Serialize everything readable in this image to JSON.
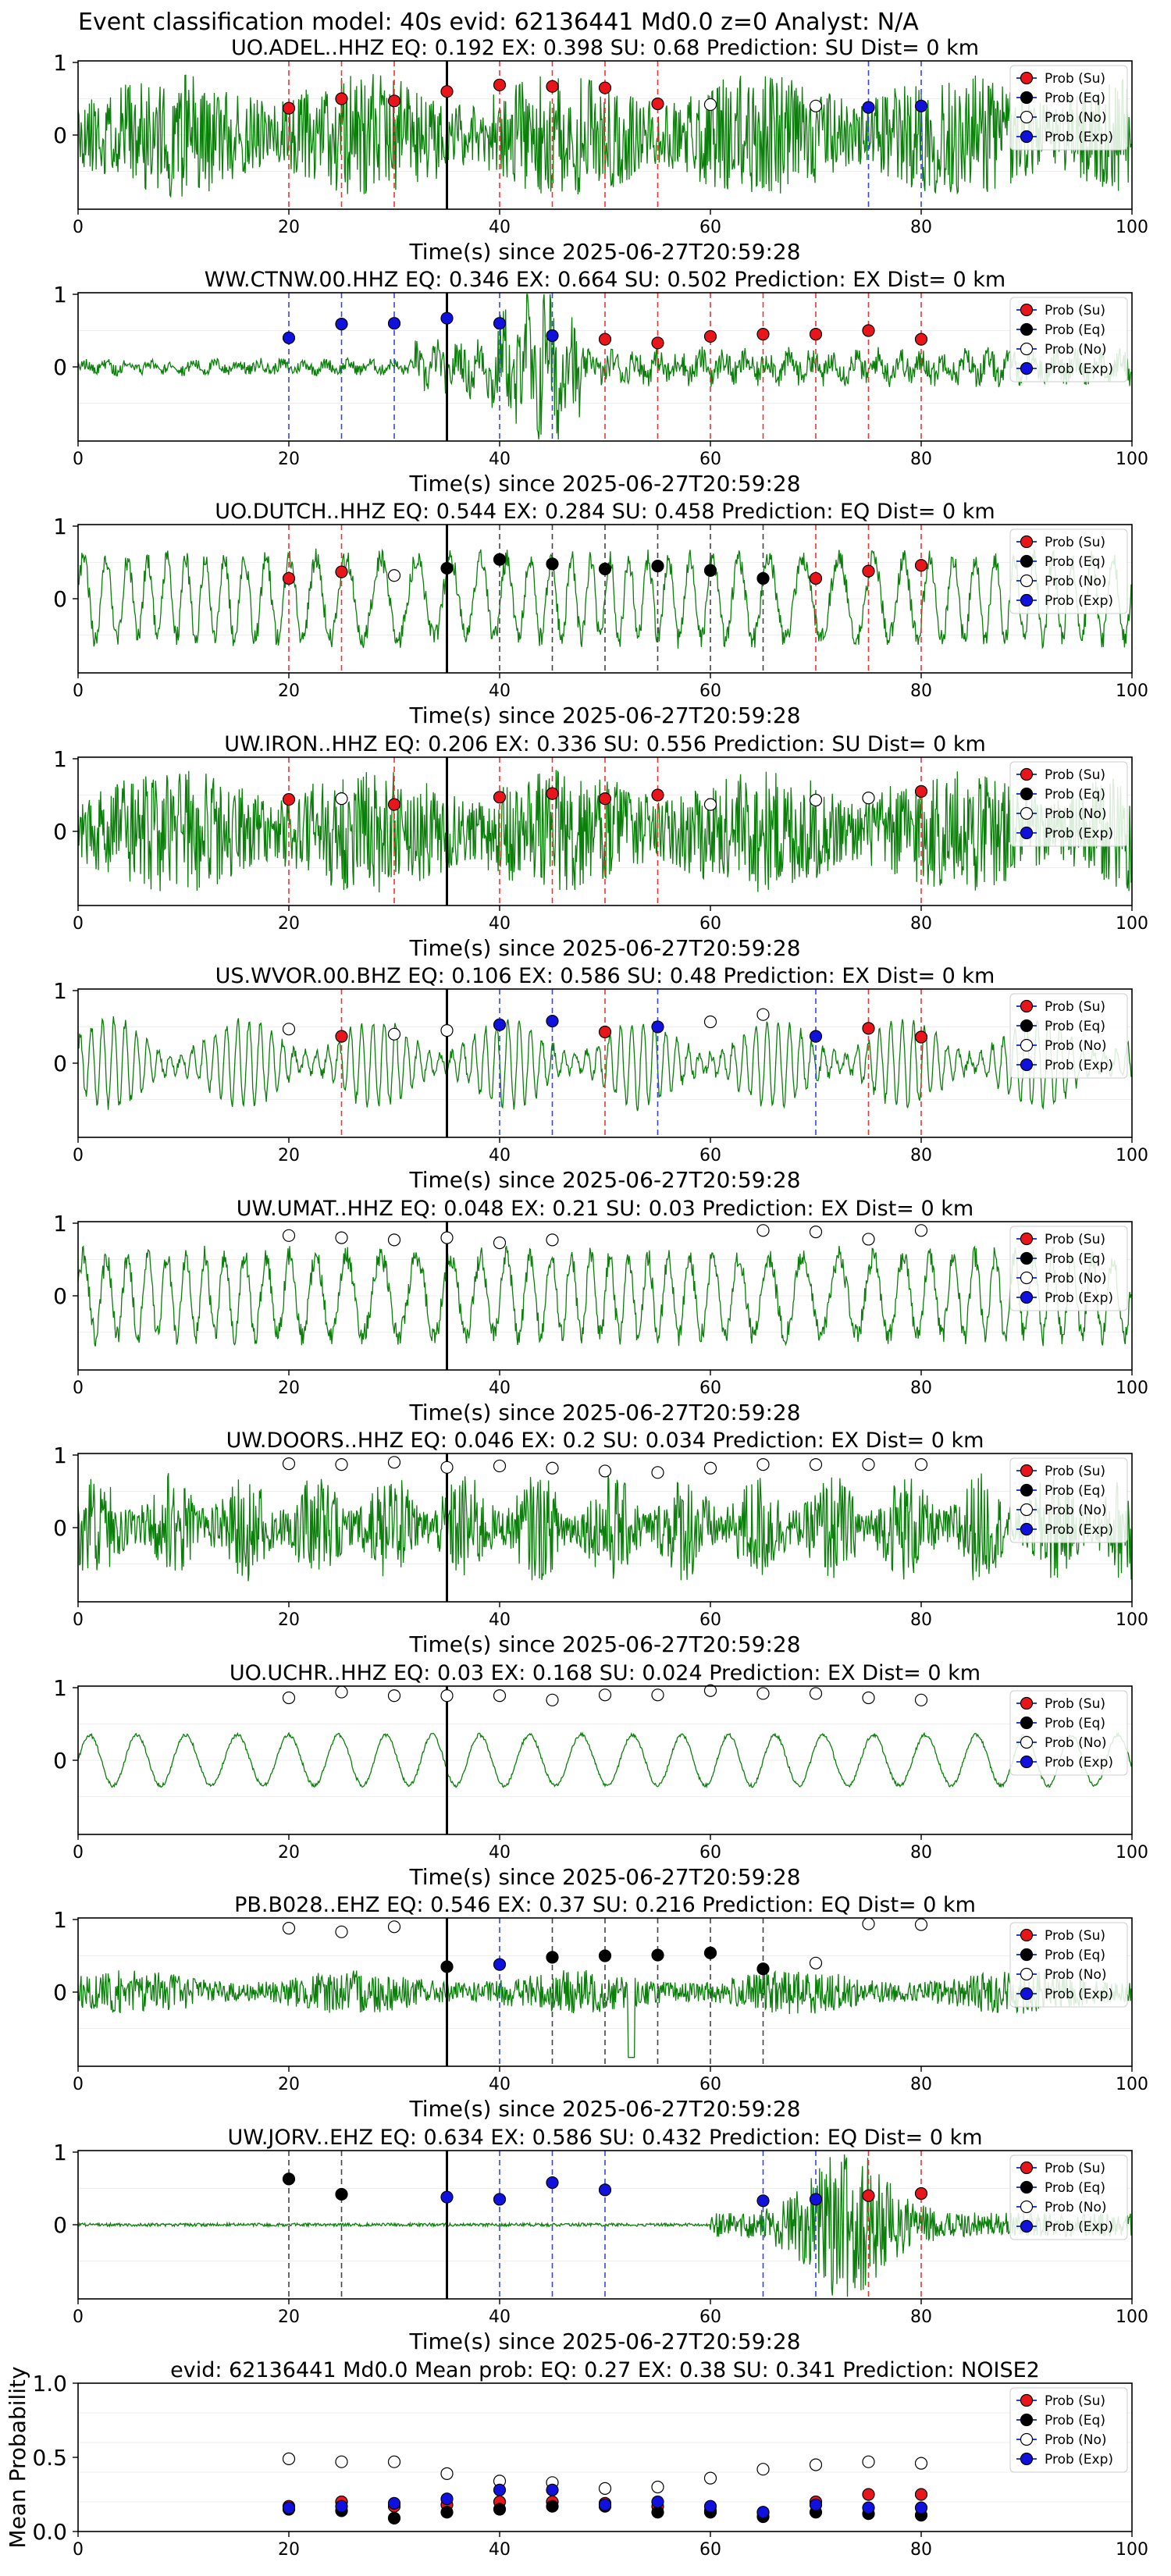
{
  "figure_title": "Event classification model: 40s evid: 62136441 Md0.0 z=0 Analyst: N/A",
  "xlabel": "Time(s) since 2025-06-27T20:59:28",
  "legend": [
    "Prob (Su)",
    "Prob (Eq)",
    "Prob (No)",
    "Prob (Exp)"
  ],
  "colors": {
    "su": "#e8161b",
    "eq": "#000000",
    "no": "#ffffff",
    "exp": "#1111dd",
    "wave": "#0a800a",
    "su_line": "#ee3333",
    "eq_line": "#444444",
    "exp_line": "#3344ee"
  },
  "chart_data": [
    {
      "type": "line",
      "title": "UO.ADEL..HHZ   EQ: 0.192  EX: 0.398  SU: 0.68   Prediction: SU    Dist= 0 km",
      "xlim": [
        0,
        100
      ],
      "ylim": [
        -1,
        1
      ],
      "yticks": [
        "1",
        "0"
      ],
      "xticks": [
        "0",
        "20",
        "40",
        "60",
        "80",
        "100"
      ],
      "pick": 35,
      "seed": 11,
      "style": "burst",
      "markers": [
        {
          "t": 20,
          "c": "su",
          "p": 0.37
        },
        {
          "t": 25,
          "c": "su",
          "p": 0.5
        },
        {
          "t": 30,
          "c": "su",
          "p": 0.47
        },
        {
          "t": 35,
          "c": "su",
          "p": 0.6
        },
        {
          "t": 40,
          "c": "su",
          "p": 0.69
        },
        {
          "t": 45,
          "c": "su",
          "p": 0.67
        },
        {
          "t": 50,
          "c": "su",
          "p": 0.65
        },
        {
          "t": 55,
          "c": "su",
          "p": 0.43
        },
        {
          "t": 60,
          "c": "no",
          "p": 0.42
        },
        {
          "t": 70,
          "c": "no",
          "p": 0.4
        },
        {
          "t": 75,
          "c": "exp",
          "p": 0.38
        },
        {
          "t": 80,
          "c": "exp",
          "p": 0.4
        }
      ]
    },
    {
      "type": "line",
      "title": "WW.CTNW.00.HHZ   EQ: 0.346  EX: 0.664  SU: 0.502   Prediction: EX    Dist= 0 km",
      "xlim": [
        0,
        100
      ],
      "ylim": [
        -1,
        1
      ],
      "yticks": [
        "1",
        "0"
      ],
      "xticks": [
        "0",
        "20",
        "40",
        "60",
        "80",
        "100"
      ],
      "pick": 35,
      "seed": 22,
      "style": "quiet-burst",
      "markers": [
        {
          "t": 20,
          "c": "exp",
          "p": 0.4
        },
        {
          "t": 25,
          "c": "exp",
          "p": 0.59
        },
        {
          "t": 30,
          "c": "exp",
          "p": 0.6
        },
        {
          "t": 35,
          "c": "exp",
          "p": 0.67
        },
        {
          "t": 40,
          "c": "exp",
          "p": 0.6
        },
        {
          "t": 45,
          "c": "exp",
          "p": 0.43
        },
        {
          "t": 50,
          "c": "su",
          "p": 0.38
        },
        {
          "t": 55,
          "c": "su",
          "p": 0.33
        },
        {
          "t": 60,
          "c": "su",
          "p": 0.42
        },
        {
          "t": 65,
          "c": "su",
          "p": 0.45
        },
        {
          "t": 70,
          "c": "su",
          "p": 0.45
        },
        {
          "t": 75,
          "c": "su",
          "p": 0.5
        },
        {
          "t": 80,
          "c": "su",
          "p": 0.38
        }
      ]
    },
    {
      "type": "line",
      "title": "UO.DUTCH..HHZ   EQ: 0.544  EX: 0.284  SU: 0.458   Prediction: EQ    Dist= 0 km",
      "xlim": [
        0,
        100
      ],
      "ylim": [
        -1,
        1
      ],
      "yticks": [
        "1",
        "0"
      ],
      "xticks": [
        "0",
        "20",
        "40",
        "60",
        "80",
        "100"
      ],
      "pick": 35,
      "seed": 33,
      "style": "wave",
      "markers": [
        {
          "t": 20,
          "c": "su",
          "p": 0.28
        },
        {
          "t": 25,
          "c": "su",
          "p": 0.37
        },
        {
          "t": 30,
          "c": "no",
          "p": 0.32
        },
        {
          "t": 35,
          "c": "eq",
          "p": 0.42
        },
        {
          "t": 40,
          "c": "eq",
          "p": 0.54
        },
        {
          "t": 45,
          "c": "eq",
          "p": 0.48
        },
        {
          "t": 50,
          "c": "eq",
          "p": 0.41
        },
        {
          "t": 55,
          "c": "eq",
          "p": 0.45
        },
        {
          "t": 60,
          "c": "eq",
          "p": 0.39
        },
        {
          "t": 65,
          "c": "eq",
          "p": 0.28
        },
        {
          "t": 70,
          "c": "su",
          "p": 0.28
        },
        {
          "t": 75,
          "c": "su",
          "p": 0.38
        },
        {
          "t": 80,
          "c": "su",
          "p": 0.46
        }
      ]
    },
    {
      "type": "line",
      "title": "UW.IRON..HHZ   EQ: 0.206  EX: 0.336  SU: 0.556   Prediction: SU    Dist= 0 km",
      "xlim": [
        0,
        100
      ],
      "ylim": [
        -1,
        1
      ],
      "yticks": [
        "1",
        "0"
      ],
      "xticks": [
        "0",
        "20",
        "40",
        "60",
        "80",
        "100"
      ],
      "pick": 35,
      "seed": 44,
      "style": "burst",
      "markers": [
        {
          "t": 20,
          "c": "su",
          "p": 0.44
        },
        {
          "t": 25,
          "c": "no",
          "p": 0.45
        },
        {
          "t": 30,
          "c": "su",
          "p": 0.37
        },
        {
          "t": 40,
          "c": "su",
          "p": 0.47
        },
        {
          "t": 45,
          "c": "su",
          "p": 0.52
        },
        {
          "t": 50,
          "c": "su",
          "p": 0.45
        },
        {
          "t": 55,
          "c": "su",
          "p": 0.5
        },
        {
          "t": 60,
          "c": "no",
          "p": 0.37
        },
        {
          "t": 70,
          "c": "no",
          "p": 0.43
        },
        {
          "t": 75,
          "c": "no",
          "p": 0.46
        },
        {
          "t": 80,
          "c": "su",
          "p": 0.55
        }
      ]
    },
    {
      "type": "line",
      "title": "US.WVOR.00.BHZ   EQ: 0.106  EX: 0.586  SU: 0.48   Prediction: EX    Dist= 0 km",
      "xlim": [
        0,
        100
      ],
      "ylim": [
        -1,
        1
      ],
      "yticks": [
        "1",
        "0"
      ],
      "xticks": [
        "0",
        "20",
        "40",
        "60",
        "80",
        "100"
      ],
      "pick": 35,
      "seed": 55,
      "style": "osc",
      "markers": [
        {
          "t": 20,
          "c": "no",
          "p": 0.47
        },
        {
          "t": 25,
          "c": "su",
          "p": 0.37
        },
        {
          "t": 30,
          "c": "no",
          "p": 0.4
        },
        {
          "t": 35,
          "c": "no",
          "p": 0.45
        },
        {
          "t": 40,
          "c": "exp",
          "p": 0.53
        },
        {
          "t": 45,
          "c": "exp",
          "p": 0.58
        },
        {
          "t": 50,
          "c": "su",
          "p": 0.43
        },
        {
          "t": 55,
          "c": "exp",
          "p": 0.5
        },
        {
          "t": 60,
          "c": "no",
          "p": 0.57
        },
        {
          "t": 65,
          "c": "no",
          "p": 0.67
        },
        {
          "t": 70,
          "c": "exp",
          "p": 0.37
        },
        {
          "t": 75,
          "c": "su",
          "p": 0.48
        },
        {
          "t": 80,
          "c": "su",
          "p": 0.36
        }
      ]
    },
    {
      "type": "line",
      "title": "UW.UMAT..HHZ   EQ: 0.048  EX: 0.21  SU: 0.03   Prediction: EX    Dist= 0 km",
      "xlim": [
        0,
        100
      ],
      "ylim": [
        -1,
        1
      ],
      "yticks": [
        "1",
        "0"
      ],
      "xticks": [
        "0",
        "20",
        "40",
        "60",
        "80",
        "100"
      ],
      "pick": 35,
      "seed": 66,
      "style": "wave",
      "markers": [
        {
          "t": 20,
          "c": "no",
          "p": 0.83
        },
        {
          "t": 25,
          "c": "no",
          "p": 0.8
        },
        {
          "t": 30,
          "c": "no",
          "p": 0.77
        },
        {
          "t": 35,
          "c": "no",
          "p": 0.8
        },
        {
          "t": 40,
          "c": "no",
          "p": 0.73
        },
        {
          "t": 45,
          "c": "no",
          "p": 0.77
        },
        {
          "t": 65,
          "c": "no",
          "p": 0.9
        },
        {
          "t": 70,
          "c": "no",
          "p": 0.88
        },
        {
          "t": 75,
          "c": "no",
          "p": 0.78
        },
        {
          "t": 80,
          "c": "no",
          "p": 0.9
        }
      ]
    },
    {
      "type": "line",
      "title": "UW.DOORS..HHZ   EQ: 0.046  EX: 0.2  SU: 0.034   Prediction: EX    Dist= 0 km",
      "xlim": [
        0,
        100
      ],
      "ylim": [
        -1,
        1
      ],
      "yticks": [
        "1",
        "0"
      ],
      "xticks": [
        "0",
        "20",
        "40",
        "60",
        "80",
        "100"
      ],
      "pick": 35,
      "seed": 77,
      "style": "dense",
      "markers": [
        {
          "t": 20,
          "c": "no",
          "p": 0.88
        },
        {
          "t": 25,
          "c": "no",
          "p": 0.87
        },
        {
          "t": 30,
          "c": "no",
          "p": 0.9
        },
        {
          "t": 35,
          "c": "no",
          "p": 0.83
        },
        {
          "t": 40,
          "c": "no",
          "p": 0.85
        },
        {
          "t": 45,
          "c": "no",
          "p": 0.82
        },
        {
          "t": 50,
          "c": "no",
          "p": 0.78
        },
        {
          "t": 55,
          "c": "no",
          "p": 0.76
        },
        {
          "t": 60,
          "c": "no",
          "p": 0.82
        },
        {
          "t": 65,
          "c": "no",
          "p": 0.87
        },
        {
          "t": 70,
          "c": "no",
          "p": 0.87
        },
        {
          "t": 75,
          "c": "no",
          "p": 0.87
        },
        {
          "t": 80,
          "c": "no",
          "p": 0.87
        }
      ]
    },
    {
      "type": "line",
      "title": "UO.UCHR..HHZ   EQ: 0.03  EX: 0.168  SU: 0.024   Prediction: EX    Dist= 0 km",
      "xlim": [
        0,
        100
      ],
      "ylim": [
        -1,
        1
      ],
      "yticks": [
        "1",
        "0"
      ],
      "xticks": [
        "0",
        "20",
        "40",
        "60",
        "80",
        "100"
      ],
      "pick": 35,
      "seed": 88,
      "style": "smooth",
      "markers": [
        {
          "t": 20,
          "c": "no",
          "p": 0.86
        },
        {
          "t": 25,
          "c": "no",
          "p": 0.94
        },
        {
          "t": 30,
          "c": "no",
          "p": 0.89
        },
        {
          "t": 35,
          "c": "no",
          "p": 0.89
        },
        {
          "t": 40,
          "c": "no",
          "p": 0.89
        },
        {
          "t": 45,
          "c": "no",
          "p": 0.83
        },
        {
          "t": 50,
          "c": "no",
          "p": 0.9
        },
        {
          "t": 55,
          "c": "no",
          "p": 0.9
        },
        {
          "t": 60,
          "c": "no",
          "p": 0.96
        },
        {
          "t": 65,
          "c": "no",
          "p": 0.92
        },
        {
          "t": 70,
          "c": "no",
          "p": 0.92
        },
        {
          "t": 75,
          "c": "no",
          "p": 0.86
        },
        {
          "t": 80,
          "c": "no",
          "p": 0.83
        }
      ]
    },
    {
      "type": "line",
      "title": "PB.B028..EHZ   EQ: 0.546  EX: 0.37  SU: 0.216   Prediction: EQ    Dist= 0 km",
      "xlim": [
        0,
        100
      ],
      "ylim": [
        -1,
        1
      ],
      "yticks": [
        "1",
        "0"
      ],
      "xticks": [
        "0",
        "20",
        "40",
        "60",
        "80",
        "100"
      ],
      "pick": 35,
      "seed": 99,
      "style": "noise",
      "markers": [
        {
          "t": 20,
          "c": "no",
          "p": 0.88
        },
        {
          "t": 25,
          "c": "no",
          "p": 0.83
        },
        {
          "t": 30,
          "c": "no",
          "p": 0.9
        },
        {
          "t": 35,
          "c": "eq",
          "p": 0.35
        },
        {
          "t": 40,
          "c": "exp",
          "p": 0.38
        },
        {
          "t": 45,
          "c": "eq",
          "p": 0.48
        },
        {
          "t": 50,
          "c": "eq",
          "p": 0.5
        },
        {
          "t": 55,
          "c": "eq",
          "p": 0.51
        },
        {
          "t": 60,
          "c": "eq",
          "p": 0.54
        },
        {
          "t": 65,
          "c": "eq",
          "p": 0.32
        },
        {
          "t": 70,
          "c": "no",
          "p": 0.4
        },
        {
          "t": 75,
          "c": "no",
          "p": 0.94
        },
        {
          "t": 80,
          "c": "no",
          "p": 0.93
        }
      ]
    },
    {
      "type": "line",
      "title": "UW.JORV..EHZ   EQ: 0.634  EX: 0.586  SU: 0.432   Prediction: EQ    Dist= 0 km",
      "xlim": [
        0,
        100
      ],
      "ylim": [
        -1,
        1
      ],
      "yticks": [
        "1",
        "0"
      ],
      "xticks": [
        "0",
        "20",
        "40",
        "60",
        "80",
        "100"
      ],
      "pick": 35,
      "seed": 111,
      "style": "late-burst",
      "markers": [
        {
          "t": 20,
          "c": "eq",
          "p": 0.63
        },
        {
          "t": 25,
          "c": "eq",
          "p": 0.42
        },
        {
          "t": 35,
          "c": "exp",
          "p": 0.38
        },
        {
          "t": 40,
          "c": "exp",
          "p": 0.35
        },
        {
          "t": 45,
          "c": "exp",
          "p": 0.58
        },
        {
          "t": 50,
          "c": "exp",
          "p": 0.48
        },
        {
          "t": 65,
          "c": "exp",
          "p": 0.33
        },
        {
          "t": 70,
          "c": "exp",
          "p": 0.35
        },
        {
          "t": 75,
          "c": "su",
          "p": 0.4
        },
        {
          "t": 80,
          "c": "su",
          "p": 0.43
        }
      ]
    },
    {
      "type": "scatter",
      "title": "evid: 62136441  Md0.0   Mean prob:   EQ: 0.27  EX: 0.38  SU: 0.341   Prediction: NOISE2",
      "ylabel": "Mean Probability",
      "xlim": [
        0,
        100
      ],
      "ylim": [
        0,
        1
      ],
      "yticks": [
        "0.0",
        "0.5",
        "1.0"
      ],
      "xticks": [
        "0",
        "20",
        "40",
        "60",
        "80",
        "100"
      ],
      "series": [
        {
          "name": "Prob (Su)",
          "key": "su",
          "x": [
            20,
            25,
            30,
            35,
            40,
            45,
            50,
            55,
            60,
            65,
            70,
            75,
            80
          ],
          "y": [
            0.17,
            0.2,
            0.17,
            0.18,
            0.2,
            0.2,
            0.19,
            0.17,
            0.14,
            0.13,
            0.2,
            0.25,
            0.25
          ]
        },
        {
          "name": "Prob (Eq)",
          "key": "eq",
          "x": [
            20,
            25,
            30,
            35,
            40,
            45,
            50,
            55,
            60,
            65,
            70,
            75,
            80
          ],
          "y": [
            0.15,
            0.14,
            0.09,
            0.13,
            0.15,
            0.17,
            0.17,
            0.13,
            0.13,
            0.1,
            0.13,
            0.12,
            0.11
          ]
        },
        {
          "name": "Prob (No)",
          "key": "no",
          "x": [
            20,
            25,
            30,
            35,
            40,
            45,
            50,
            55,
            60,
            65,
            70,
            75,
            80
          ],
          "y": [
            0.49,
            0.47,
            0.47,
            0.39,
            0.34,
            0.33,
            0.29,
            0.3,
            0.36,
            0.42,
            0.45,
            0.47,
            0.46
          ]
        },
        {
          "name": "Prob (Exp)",
          "key": "exp",
          "x": [
            20,
            25,
            30,
            35,
            40,
            45,
            50,
            55,
            60,
            65,
            70,
            75,
            80
          ],
          "y": [
            0.16,
            0.17,
            0.19,
            0.22,
            0.28,
            0.28,
            0.18,
            0.2,
            0.17,
            0.13,
            0.18,
            0.16,
            0.16
          ]
        }
      ]
    }
  ]
}
